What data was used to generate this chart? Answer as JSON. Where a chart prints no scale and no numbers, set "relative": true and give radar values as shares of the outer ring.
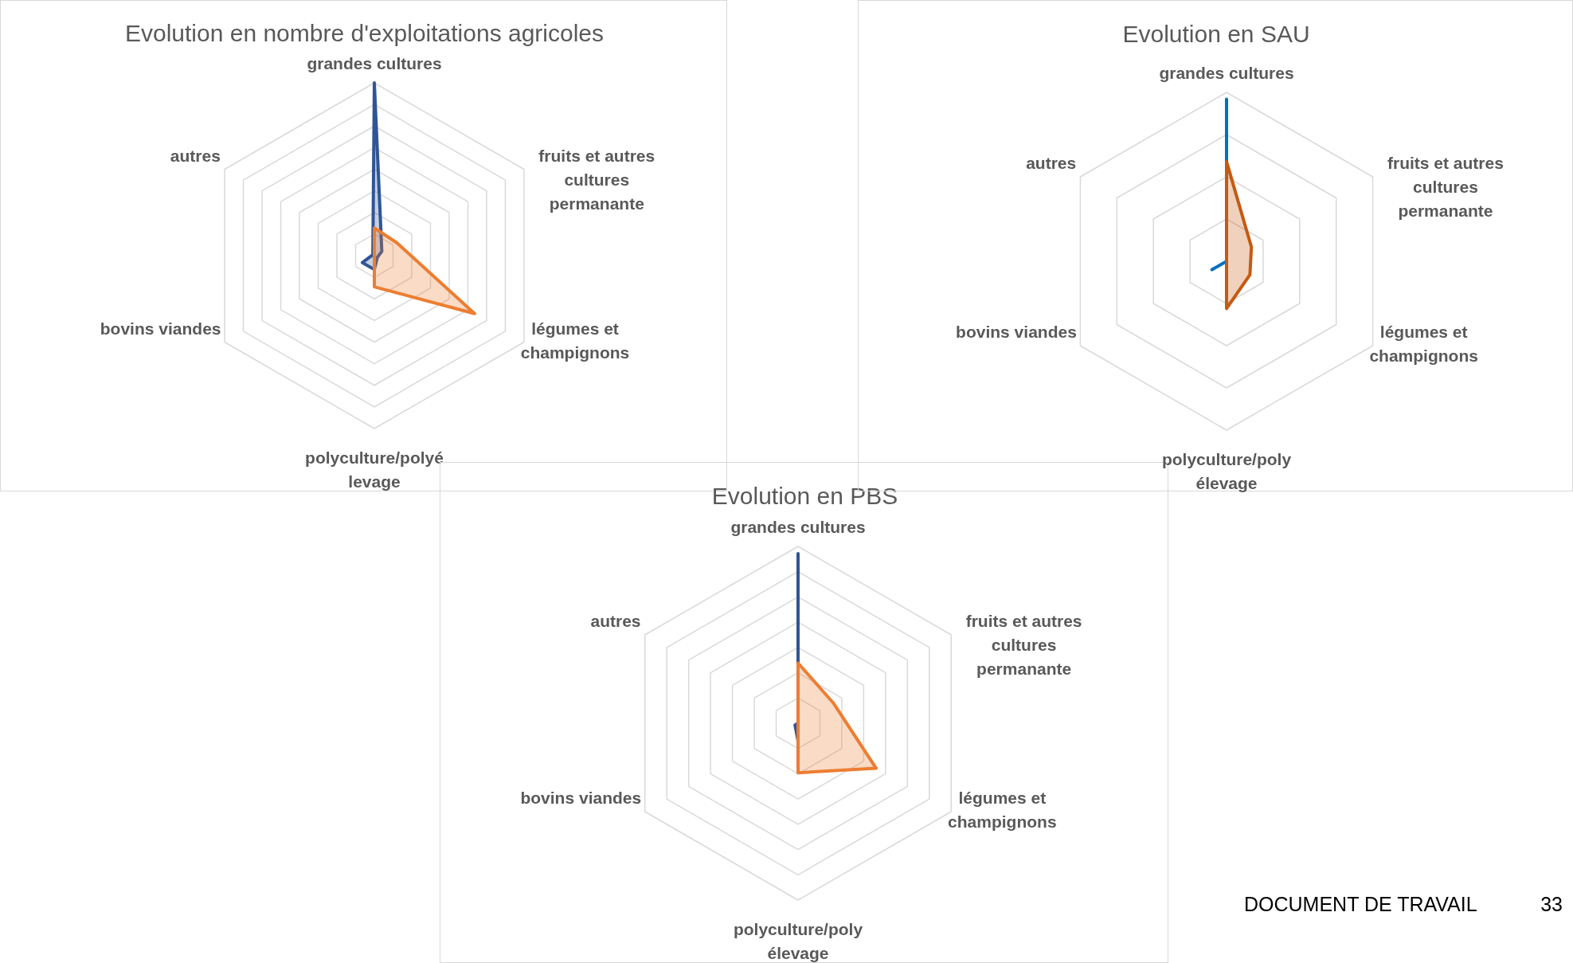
{
  "chart_data": [
    {
      "type": "radar",
      "title": "Evolution en nombre d'exploitations agricoles",
      "relative": true,
      "grid": true,
      "categories": [
        "grandes cultures",
        "fruits et autres cultures permanante",
        "légumes et champignons",
        "polyculture/polyélevage",
        "bovins viandes",
        "autres"
      ],
      "series": [
        {
          "color": "#2f5597",
          "values": [
            1,
            0.05,
            0.02,
            0.08,
            0.08,
            0.01
          ]
        },
        {
          "color": "#ed7d31",
          "values": [
            0.16,
            0.15,
            0.67,
            0.18,
            0,
            0
          ]
        }
      ]
    },
    {
      "type": "radar",
      "title": "Evolution en SAU",
      "relative": true,
      "grid": true,
      "categories": [
        "grandes cultures",
        "fruits et autres cultures permanante",
        "légumes et champignons",
        "polyculture/poly élevage",
        "bovins viandes",
        "autres"
      ],
      "series": [
        {
          "color": "#0070c0",
          "values": [
            0.96,
            0,
            0,
            0,
            0.1,
            0
          ]
        },
        {
          "color": "#c55a11",
          "values": [
            0.59,
            0.17,
            0.16,
            0.28,
            0,
            0
          ]
        }
      ]
    },
    {
      "type": "radar",
      "title": "Evolution en PBS",
      "relative": true,
      "grid": true,
      "categories": [
        "grandes cultures",
        "fruits et autres cultures permanante",
        "légumes et champignons",
        "polyculture/poly élevage",
        "bovins viandes",
        "autres"
      ],
      "series": [
        {
          "color": "#2f5597",
          "values": [
            0.96,
            0,
            0,
            0.1,
            0.02,
            0
          ]
        },
        {
          "color": "#ed7d31",
          "values": [
            0.34,
            0.23,
            0.51,
            0.28,
            0,
            0
          ]
        }
      ],
      "annotations": [
        "DOCUMENT DE TRAVAIL",
        "33"
      ]
    }
  ]
}
